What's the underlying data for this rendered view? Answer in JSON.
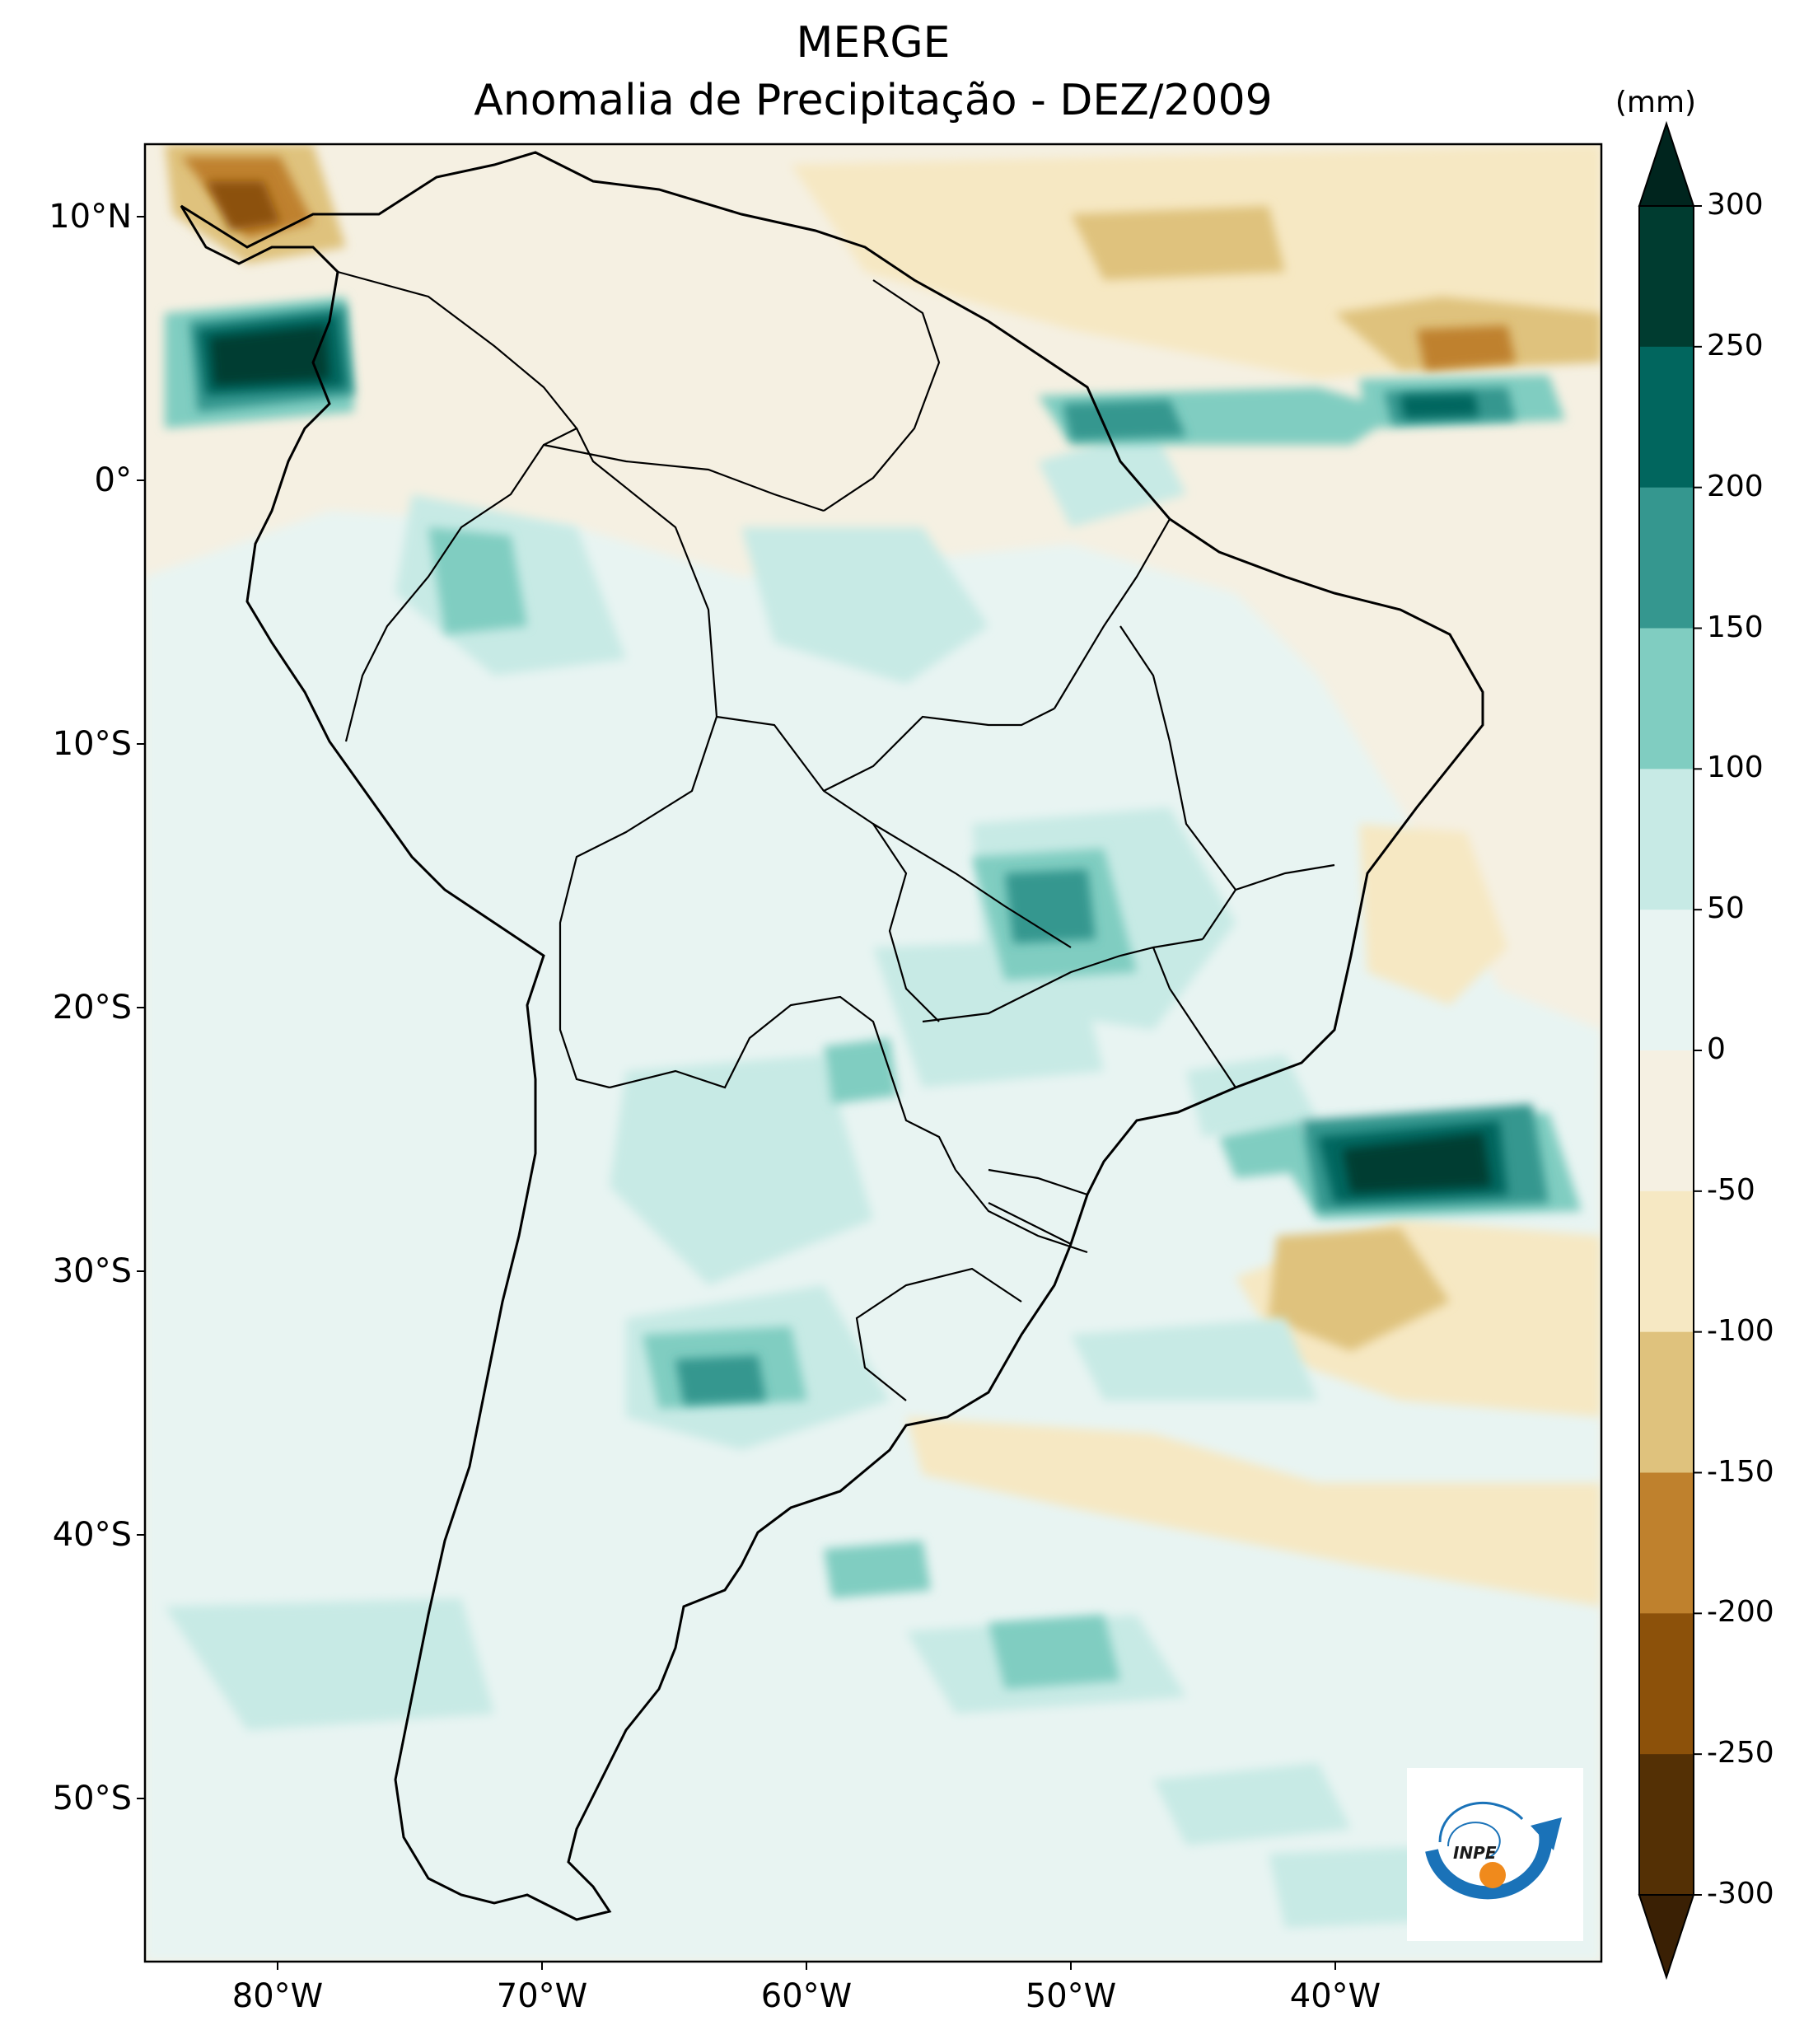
{
  "title": "MERGE",
  "subtitle": "Anomalia de Precipitação - DEZ/2009",
  "colorbar": {
    "unit": "(mm)",
    "tick_labels": [
      "300",
      "250",
      "200",
      "150",
      "100",
      "50",
      "0",
      "-50",
      "-100",
      "-150",
      "-200",
      "-250",
      "-300"
    ],
    "colors": [
      "#003c30",
      "#01665e",
      "#35978f",
      "#80cdc1",
      "#c7eae5",
      "#e8f4f2",
      "#f5f0e2",
      "#f6e8c3",
      "#dfc27d",
      "#bf812d",
      "#8c510a",
      "#543005"
    ],
    "min_color": "#3a2004",
    "max_color": "#00251e"
  },
  "axes": {
    "lat_labels": [
      "10°N",
      "0°",
      "10°S",
      "20°S",
      "30°S",
      "40°S",
      "50°S"
    ],
    "lon_labels": [
      "80°W",
      "70°W",
      "60°W",
      "50°W",
      "40°W"
    ]
  },
  "logo": {
    "text": "INPE"
  }
}
